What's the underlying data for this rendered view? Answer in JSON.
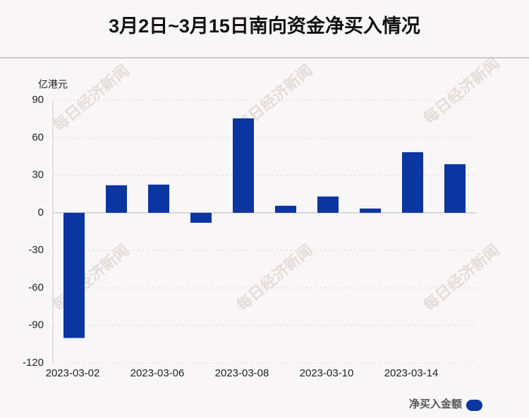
{
  "chart_data": {
    "type": "bar",
    "title": "3月2日~3月15日南向资金净买入情况",
    "y_label": "亿港元",
    "watermark": "每日经济新闻",
    "categories": [
      "2023-03-02",
      null,
      "2023-03-06",
      null,
      "2023-03-08",
      null,
      "2023-03-10",
      null,
      "2023-03-14",
      null
    ],
    "series": [
      {
        "name": "净买入金额",
        "color": "#0b35a0",
        "values": [
          -100,
          22,
          22.5,
          -8,
          75.4,
          5.6,
          13,
          3.4,
          48.4,
          38.8
        ]
      }
    ],
    "ylim": [
      -120,
      90
    ],
    "yticks": [
      -120,
      -90,
      -60,
      -30,
      0,
      30,
      60,
      90
    ],
    "grid": true,
    "legend": "bottom-right"
  }
}
